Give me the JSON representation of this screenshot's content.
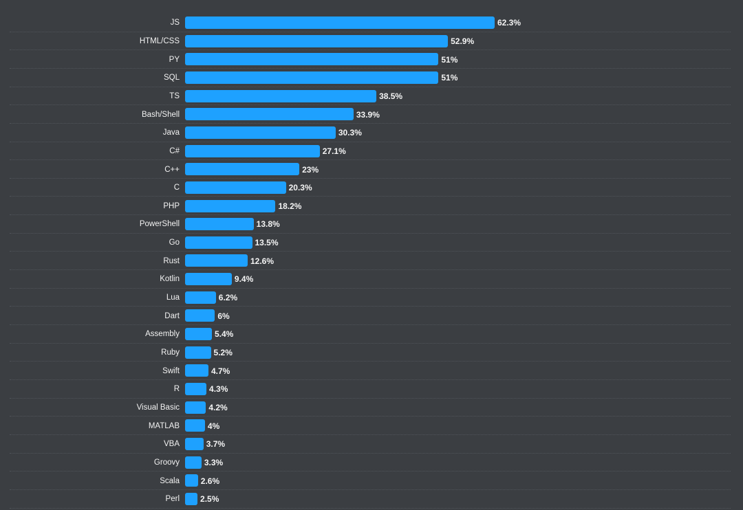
{
  "chart_data": {
    "type": "bar",
    "orientation": "horizontal",
    "title": "",
    "xlabel": "",
    "ylabel": "",
    "xlim": [
      0,
      62.3
    ],
    "grid": false,
    "value_suffix": "%",
    "bar_color": "#1ea1ff",
    "background_color": "#3b3e42",
    "categories": [
      "JS",
      "HTML/CSS",
      "PY",
      "SQL",
      "TS",
      "Bash/Shell",
      "Java",
      "C#",
      "C++",
      "C",
      "PHP",
      "PowerShell",
      "Go",
      "Rust",
      "Kotlin",
      "Lua",
      "Dart",
      "Assembly",
      "Ruby",
      "Swift",
      "R",
      "Visual Basic",
      "MATLAB",
      "VBA",
      "Groovy",
      "Scala",
      "Perl"
    ],
    "values": [
      62.3,
      52.9,
      51,
      51,
      38.5,
      33.9,
      30.3,
      27.1,
      23,
      20.3,
      18.2,
      13.8,
      13.5,
      12.6,
      9.4,
      6.2,
      6,
      5.4,
      5.2,
      4.7,
      4.3,
      4.2,
      4,
      3.7,
      3.3,
      2.6,
      2.5
    ],
    "value_labels": [
      "62.3%",
      "52.9%",
      "51%",
      "51%",
      "38.5%",
      "33.9%",
      "30.3%",
      "27.1%",
      "23%",
      "20.3%",
      "18.2%",
      "13.8%",
      "13.5%",
      "12.6%",
      "9.4%",
      "6.2%",
      "6%",
      "5.4%",
      "5.2%",
      "4.7%",
      "4.3%",
      "4.2%",
      "4%",
      "3.7%",
      "3.3%",
      "2.6%",
      "2.5%"
    ]
  }
}
